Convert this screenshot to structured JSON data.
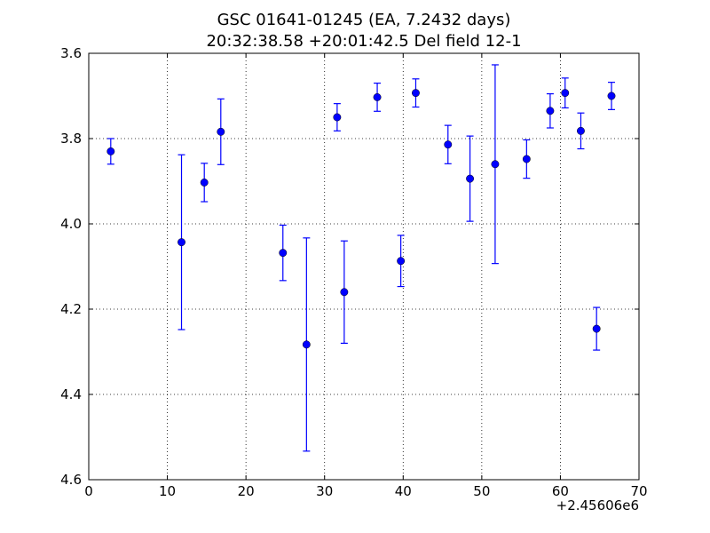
{
  "chart_data": {
    "type": "scatter",
    "title": "GSC 01641-01245 (EA, 7.2432 days)",
    "subtitle": "20:32:38.58 +20:01:42.5 Del field 12-1",
    "xlabel": "",
    "ylabel": "",
    "x_offset_label": "+2.45606e6",
    "xlim": [
      0,
      70
    ],
    "ylim": [
      3.6,
      4.6
    ],
    "y_inverted": true,
    "grid": true,
    "x_ticks": [
      "0",
      "10",
      "20",
      "30",
      "40",
      "50",
      "60",
      "70"
    ],
    "y_ticks": [
      "3.6",
      "3.8",
      "4.0",
      "4.2",
      "4.4",
      "4.6"
    ],
    "marker_color": "#0000ff",
    "points": [
      {
        "x": 2.8,
        "y": 3.83,
        "err": 0.03
      },
      {
        "x": 11.8,
        "y": 4.043,
        "err": 0.205
      },
      {
        "x": 14.7,
        "y": 3.903,
        "err": 0.045
      },
      {
        "x": 16.8,
        "y": 3.784,
        "err": 0.077
      },
      {
        "x": 24.7,
        "y": 4.068,
        "err": 0.065
      },
      {
        "x": 27.7,
        "y": 4.283,
        "err": 0.25
      },
      {
        "x": 31.6,
        "y": 3.75,
        "err": 0.032
      },
      {
        "x": 32.5,
        "y": 4.16,
        "err": 0.12
      },
      {
        "x": 36.7,
        "y": 3.703,
        "err": 0.033
      },
      {
        "x": 39.7,
        "y": 4.087,
        "err": 0.06
      },
      {
        "x": 41.6,
        "y": 3.693,
        "err": 0.033
      },
      {
        "x": 45.7,
        "y": 3.814,
        "err": 0.045
      },
      {
        "x": 48.5,
        "y": 3.894,
        "err": 0.1
      },
      {
        "x": 51.7,
        "y": 3.86,
        "err": 0.233
      },
      {
        "x": 55.7,
        "y": 3.848,
        "err": 0.045
      },
      {
        "x": 58.7,
        "y": 3.735,
        "err": 0.04
      },
      {
        "x": 60.6,
        "y": 3.693,
        "err": 0.035
      },
      {
        "x": 62.6,
        "y": 3.782,
        "err": 0.042
      },
      {
        "x": 64.6,
        "y": 4.246,
        "err": 0.05
      },
      {
        "x": 66.5,
        "y": 3.7,
        "err": 0.032
      }
    ]
  }
}
